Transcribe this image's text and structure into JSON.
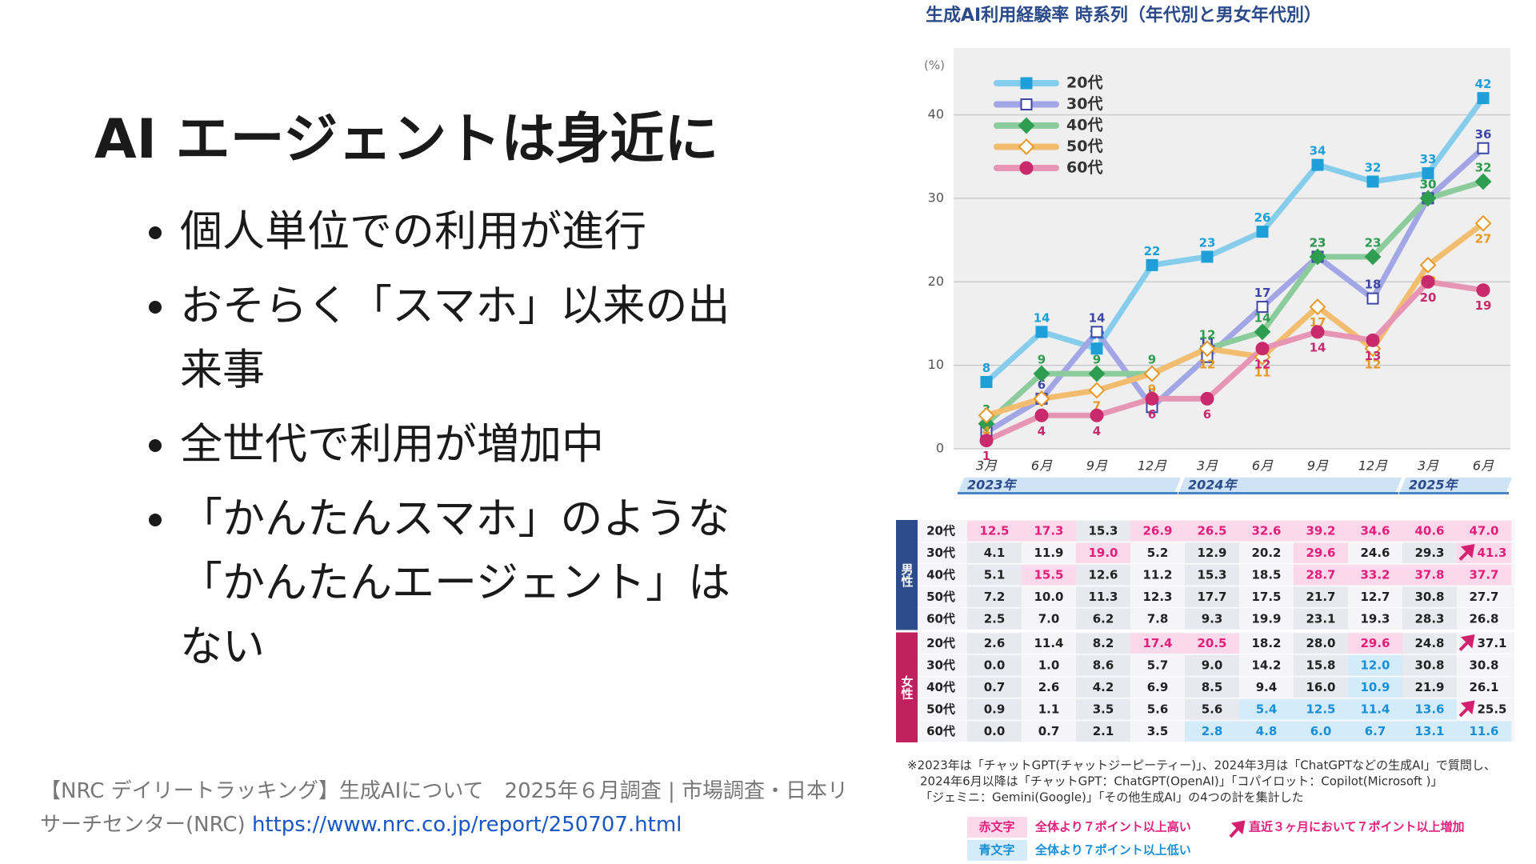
{
  "slide": {
    "title": "AI エージェントは身近に",
    "bullets": [
      "個人単位での利用が進行",
      "おそらく「スマホ」以来の出来事",
      "全世代で利用が増加中",
      "「かんたんスマホ」のような「かんたんエージェント」はない"
    ],
    "source_text": "【NRC デイリートラッキング】生成AIについて　2025年６月調査 | 市場調査・日本リサーチセンター(NRC)",
    "source_link": "https://www.nrc.co.jp/report/250707.html"
  },
  "chart_data": {
    "type": "line",
    "title": "生成AI利用経験率 時系列（年代別と男女年代別）",
    "y_unit": "(%)",
    "categories": [
      "3月",
      "6月",
      "9月",
      "12月",
      "3月",
      "6月",
      "9月",
      "12月",
      "3月",
      "6月"
    ],
    "x_groups": [
      {
        "label": "2023年",
        "count": 4
      },
      {
        "label": "2024年",
        "count": 4
      },
      {
        "label": "2025年",
        "count": 2
      }
    ],
    "ylim": [
      0,
      48
    ],
    "yticks": [
      0,
      10,
      20,
      30,
      40
    ],
    "grid": true,
    "legend": "upper left",
    "series": [
      {
        "name": "20代",
        "color": "#86cdec",
        "marker_color": "#1f9fd8",
        "marker": "square",
        "marker_fill": "filled",
        "values": [
          8,
          14,
          12,
          22,
          23,
          26,
          34,
          32,
          33,
          42
        ]
      },
      {
        "name": "30代",
        "color": "#a3a6e4",
        "marker_color": "#3d46a6",
        "marker": "square",
        "marker_fill": "open",
        "values": [
          2,
          6,
          14,
          5,
          11,
          17,
          23,
          18,
          30,
          36
        ]
      },
      {
        "name": "40代",
        "color": "#8ccb9c",
        "marker_color": "#2f9d50",
        "marker": "diamond",
        "marker_fill": "filled",
        "values": [
          3,
          9,
          9,
          9,
          12,
          14,
          23,
          23,
          30,
          32
        ]
      },
      {
        "name": "50代",
        "color": "#f3bd70",
        "marker_color": "#e59a28",
        "marker": "diamond",
        "marker_fill": "open",
        "values": [
          4,
          6,
          7,
          9,
          12,
          11,
          17,
          12,
          22,
          27
        ]
      },
      {
        "name": "60代",
        "color": "#e695b3",
        "marker_color": "#c82a6c",
        "marker": "circle",
        "marker_fill": "filled",
        "values": [
          1,
          4,
          4,
          6,
          6,
          12,
          14,
          13,
          20,
          19
        ]
      }
    ]
  },
  "table": {
    "groups": [
      {
        "label": "男性",
        "color": "#2c4c8c",
        "rows": [
          {
            "age": "20代",
            "cells": [
              "12.5",
              "17.3",
              "15.3",
              "26.9",
              "26.5",
              "32.6",
              "39.2",
              "34.6",
              "40.6",
              "47.0"
            ],
            "styles": [
              "high",
              "high",
              "plain",
              "high",
              "high",
              "high",
              "high",
              "high",
              "high",
              "high"
            ]
          },
          {
            "age": "30代",
            "cells": [
              "4.1",
              "11.9",
              "19.0",
              "5.2",
              "12.9",
              "20.2",
              "29.6",
              "24.6",
              "29.3",
              "41.3"
            ],
            "styles": [
              "plain",
              "plain",
              "high",
              "plain",
              "plain",
              "plain",
              "high",
              "plain",
              "plain",
              "high"
            ],
            "arrow": 9
          },
          {
            "age": "40代",
            "cells": [
              "5.1",
              "15.5",
              "12.6",
              "11.2",
              "15.3",
              "18.5",
              "28.7",
              "33.2",
              "37.8",
              "37.7"
            ],
            "styles": [
              "plain",
              "high",
              "plain",
              "plain",
              "plain",
              "plain",
              "high",
              "high",
              "high",
              "high"
            ]
          },
          {
            "age": "50代",
            "cells": [
              "7.2",
              "10.0",
              "11.3",
              "12.3",
              "17.7",
              "17.5",
              "21.7",
              "12.7",
              "30.8",
              "27.7"
            ],
            "styles": [
              "plain",
              "plain",
              "plain",
              "plain",
              "plain",
              "plain",
              "plain",
              "plain",
              "plain",
              "plain"
            ]
          },
          {
            "age": "60代",
            "cells": [
              "2.5",
              "7.0",
              "6.2",
              "7.8",
              "9.3",
              "19.9",
              "23.1",
              "19.3",
              "28.3",
              "26.8"
            ],
            "styles": [
              "plain",
              "plain",
              "plain",
              "plain",
              "plain",
              "plain",
              "plain",
              "plain",
              "plain",
              "plain"
            ]
          }
        ]
      },
      {
        "label": "女性",
        "color": "#c0215f",
        "rows": [
          {
            "age": "20代",
            "cells": [
              "2.6",
              "11.4",
              "8.2",
              "17.4",
              "20.5",
              "18.2",
              "28.0",
              "29.6",
              "24.8",
              "37.1"
            ],
            "styles": [
              "plain",
              "plain",
              "plain",
              "high",
              "high",
              "plain",
              "plain",
              "high",
              "plain",
              "plain"
            ],
            "arrow": 9
          },
          {
            "age": "30代",
            "cells": [
              "0.0",
              "1.0",
              "8.6",
              "5.7",
              "9.0",
              "14.2",
              "15.8",
              "12.0",
              "30.8",
              "30.8"
            ],
            "styles": [
              "plain",
              "plain",
              "plain",
              "plain",
              "plain",
              "plain",
              "plain",
              "low",
              "plain",
              "plain"
            ]
          },
          {
            "age": "40代",
            "cells": [
              "0.7",
              "2.6",
              "4.2",
              "6.9",
              "8.5",
              "9.4",
              "16.0",
              "10.9",
              "21.9",
              "26.1"
            ],
            "styles": [
              "plain",
              "plain",
              "plain",
              "plain",
              "plain",
              "plain",
              "plain",
              "low",
              "plain",
              "plain"
            ]
          },
          {
            "age": "50代",
            "cells": [
              "0.9",
              "1.1",
              "3.5",
              "5.6",
              "5.6",
              "5.4",
              "12.5",
              "11.4",
              "13.6",
              "25.5"
            ],
            "styles": [
              "plain",
              "plain",
              "plain",
              "plain",
              "plain",
              "low",
              "low",
              "low",
              "low",
              "plain"
            ],
            "arrow": 9
          },
          {
            "age": "60代",
            "cells": [
              "0.0",
              "0.7",
              "2.1",
              "3.5",
              "2.8",
              "4.8",
              "6.0",
              "6.7",
              "13.1",
              "11.6"
            ],
            "styles": [
              "plain",
              "plain",
              "plain",
              "plain",
              "low",
              "low",
              "low",
              "low",
              "low",
              "low"
            ]
          }
        ]
      }
    ],
    "notes": [
      "※2023年は「チャットGPT(チャットジーピーティー)」、2024年3月は「ChatGPTなどの生成AI」で質問し、",
      "2024年6月以降は「チャットGPT：ChatGPT(OpenAI)」「コパイロット：Copilot(Microsoft )」",
      "「ジェミニ：Gemini(Google)」「その他生成AI」の4つの計を集計した"
    ],
    "key": {
      "high_label": "赤文字",
      "high_text": "全体より７ポイント以上高い",
      "low_label": "青文字",
      "low_text": "全体より７ポイント以上低い",
      "arrow_text": "直近３ヶ月において７ポイント以上増加"
    }
  }
}
